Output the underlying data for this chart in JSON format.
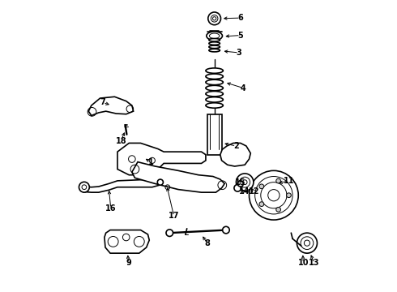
{
  "background_color": "#ffffff",
  "line_color": "#000000",
  "label_color": "#000000",
  "fig_width": 4.9,
  "fig_height": 3.6,
  "dpi": 100
}
